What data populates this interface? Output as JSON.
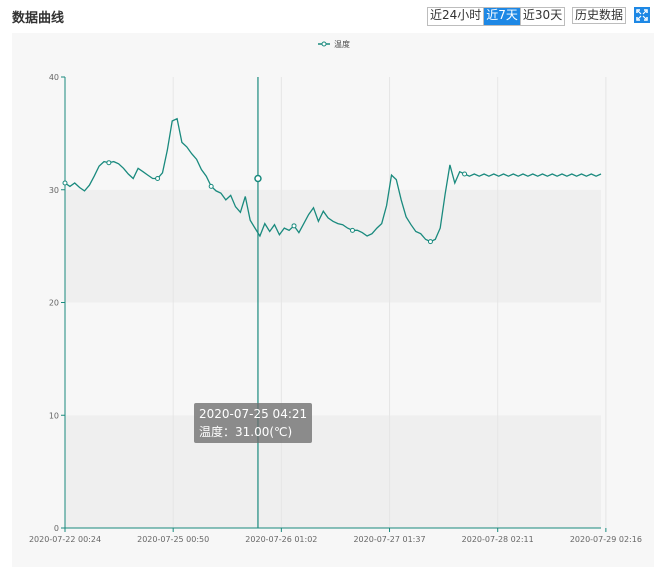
{
  "header": {
    "title": "数据曲线",
    "range_buttons": [
      "近24小时",
      "近7天",
      "近30天"
    ],
    "active_range": 1,
    "history_label": "历史数据",
    "expand_icon": "expand-icon"
  },
  "tooltip": {
    "time": "2020-07-25 04:21",
    "value_text": "温度：31.00(℃)"
  },
  "colors": {
    "line": "#1a8a7e",
    "active_button": "#1e88e5",
    "band": "#efefef"
  },
  "chart_data": {
    "type": "line",
    "title": "",
    "xlabel": "",
    "ylabel": "",
    "ylim": [
      0,
      40
    ],
    "y_ticks": [
      0,
      10,
      20,
      30,
      40
    ],
    "x_ticks": [
      "2020-07-22 00:24",
      "2020-07-25 00:50",
      "2020-07-26 01:02",
      "2020-07-27 01:37",
      "2020-07-28 02:11",
      "2020-07-29 02:16"
    ],
    "legend": {
      "position": "top-center",
      "entries": [
        "温度"
      ]
    },
    "grid": true,
    "cursor_time": "2020-07-25 04:21",
    "series": [
      {
        "name": "温度",
        "x": [
          0,
          0.5,
          1,
          1.5,
          2,
          2.5,
          3,
          3.5,
          4,
          4.5,
          5,
          5.5,
          6,
          6.5,
          7,
          7.5,
          8,
          8.5,
          9,
          9.5,
          10,
          10.5,
          11,
          11.5,
          12,
          12.5,
          13,
          13.5,
          14,
          14.5,
          15,
          15.5,
          16,
          16.5,
          17,
          17.5,
          18,
          18.5,
          19,
          19.5,
          20,
          20.5,
          21,
          21.5,
          22,
          22.5,
          23,
          23.5,
          24,
          24.5,
          25,
          25.5,
          26,
          26.5,
          27,
          27.5,
          28,
          28.5,
          29,
          29.5,
          30,
          30.5,
          31,
          31.5,
          32,
          32.5,
          33,
          33.5,
          34,
          34.5,
          35,
          35.5,
          36,
          36.5,
          37,
          37.5,
          38,
          38.5,
          39,
          39.5,
          40,
          40.5,
          41,
          41.5,
          42,
          42.5,
          43,
          43.5,
          44,
          44.5,
          45,
          45.5,
          46,
          46.5,
          47,
          47.5,
          48,
          48.5,
          49,
          49.5,
          50,
          50.5,
          51,
          51.5,
          52,
          52.5,
          53,
          53.5,
          54,
          54.5,
          55
        ],
        "values": [
          30.6,
          30.3,
          30.6,
          30.2,
          29.9,
          30.4,
          31.2,
          32.1,
          32.5,
          32.4,
          32.5,
          32.3,
          31.9,
          31.4,
          31.0,
          31.9,
          31.6,
          31.3,
          31.0,
          31.0,
          31.5,
          33.5,
          36.1,
          36.3,
          34.2,
          33.8,
          33.2,
          32.7,
          31.8,
          31.2,
          30.3,
          29.9,
          29.7,
          29.1,
          29.5,
          28.5,
          28.0,
          29.4,
          27.3,
          26.6,
          25.9,
          27.0,
          26.3,
          26.9,
          26.0,
          26.6,
          26.4,
          26.8,
          26.2,
          27.0,
          27.8,
          28.4,
          27.2,
          28.1,
          27.5,
          27.2,
          27.0,
          26.9,
          26.6,
          26.4,
          26.4,
          26.2,
          25.9,
          26.1,
          26.6,
          27.0,
          28.6,
          31.3,
          30.9,
          29.1,
          27.6,
          26.9,
          26.3,
          26.1,
          25.6,
          25.4,
          25.6,
          26.6,
          29.6,
          32.2,
          30.6,
          31.6,
          31.4,
          31.2,
          31.4,
          31.2,
          31.4,
          31.2,
          31.4,
          31.2,
          31.4,
          31.2,
          31.4,
          31.2,
          31.4,
          31.2,
          31.4,
          31.2,
          31.4,
          31.2,
          31.4,
          31.2,
          31.4,
          31.2,
          31.4,
          31.2,
          31.4,
          31.2,
          31.4,
          31.2,
          31.4
        ]
      }
    ]
  }
}
